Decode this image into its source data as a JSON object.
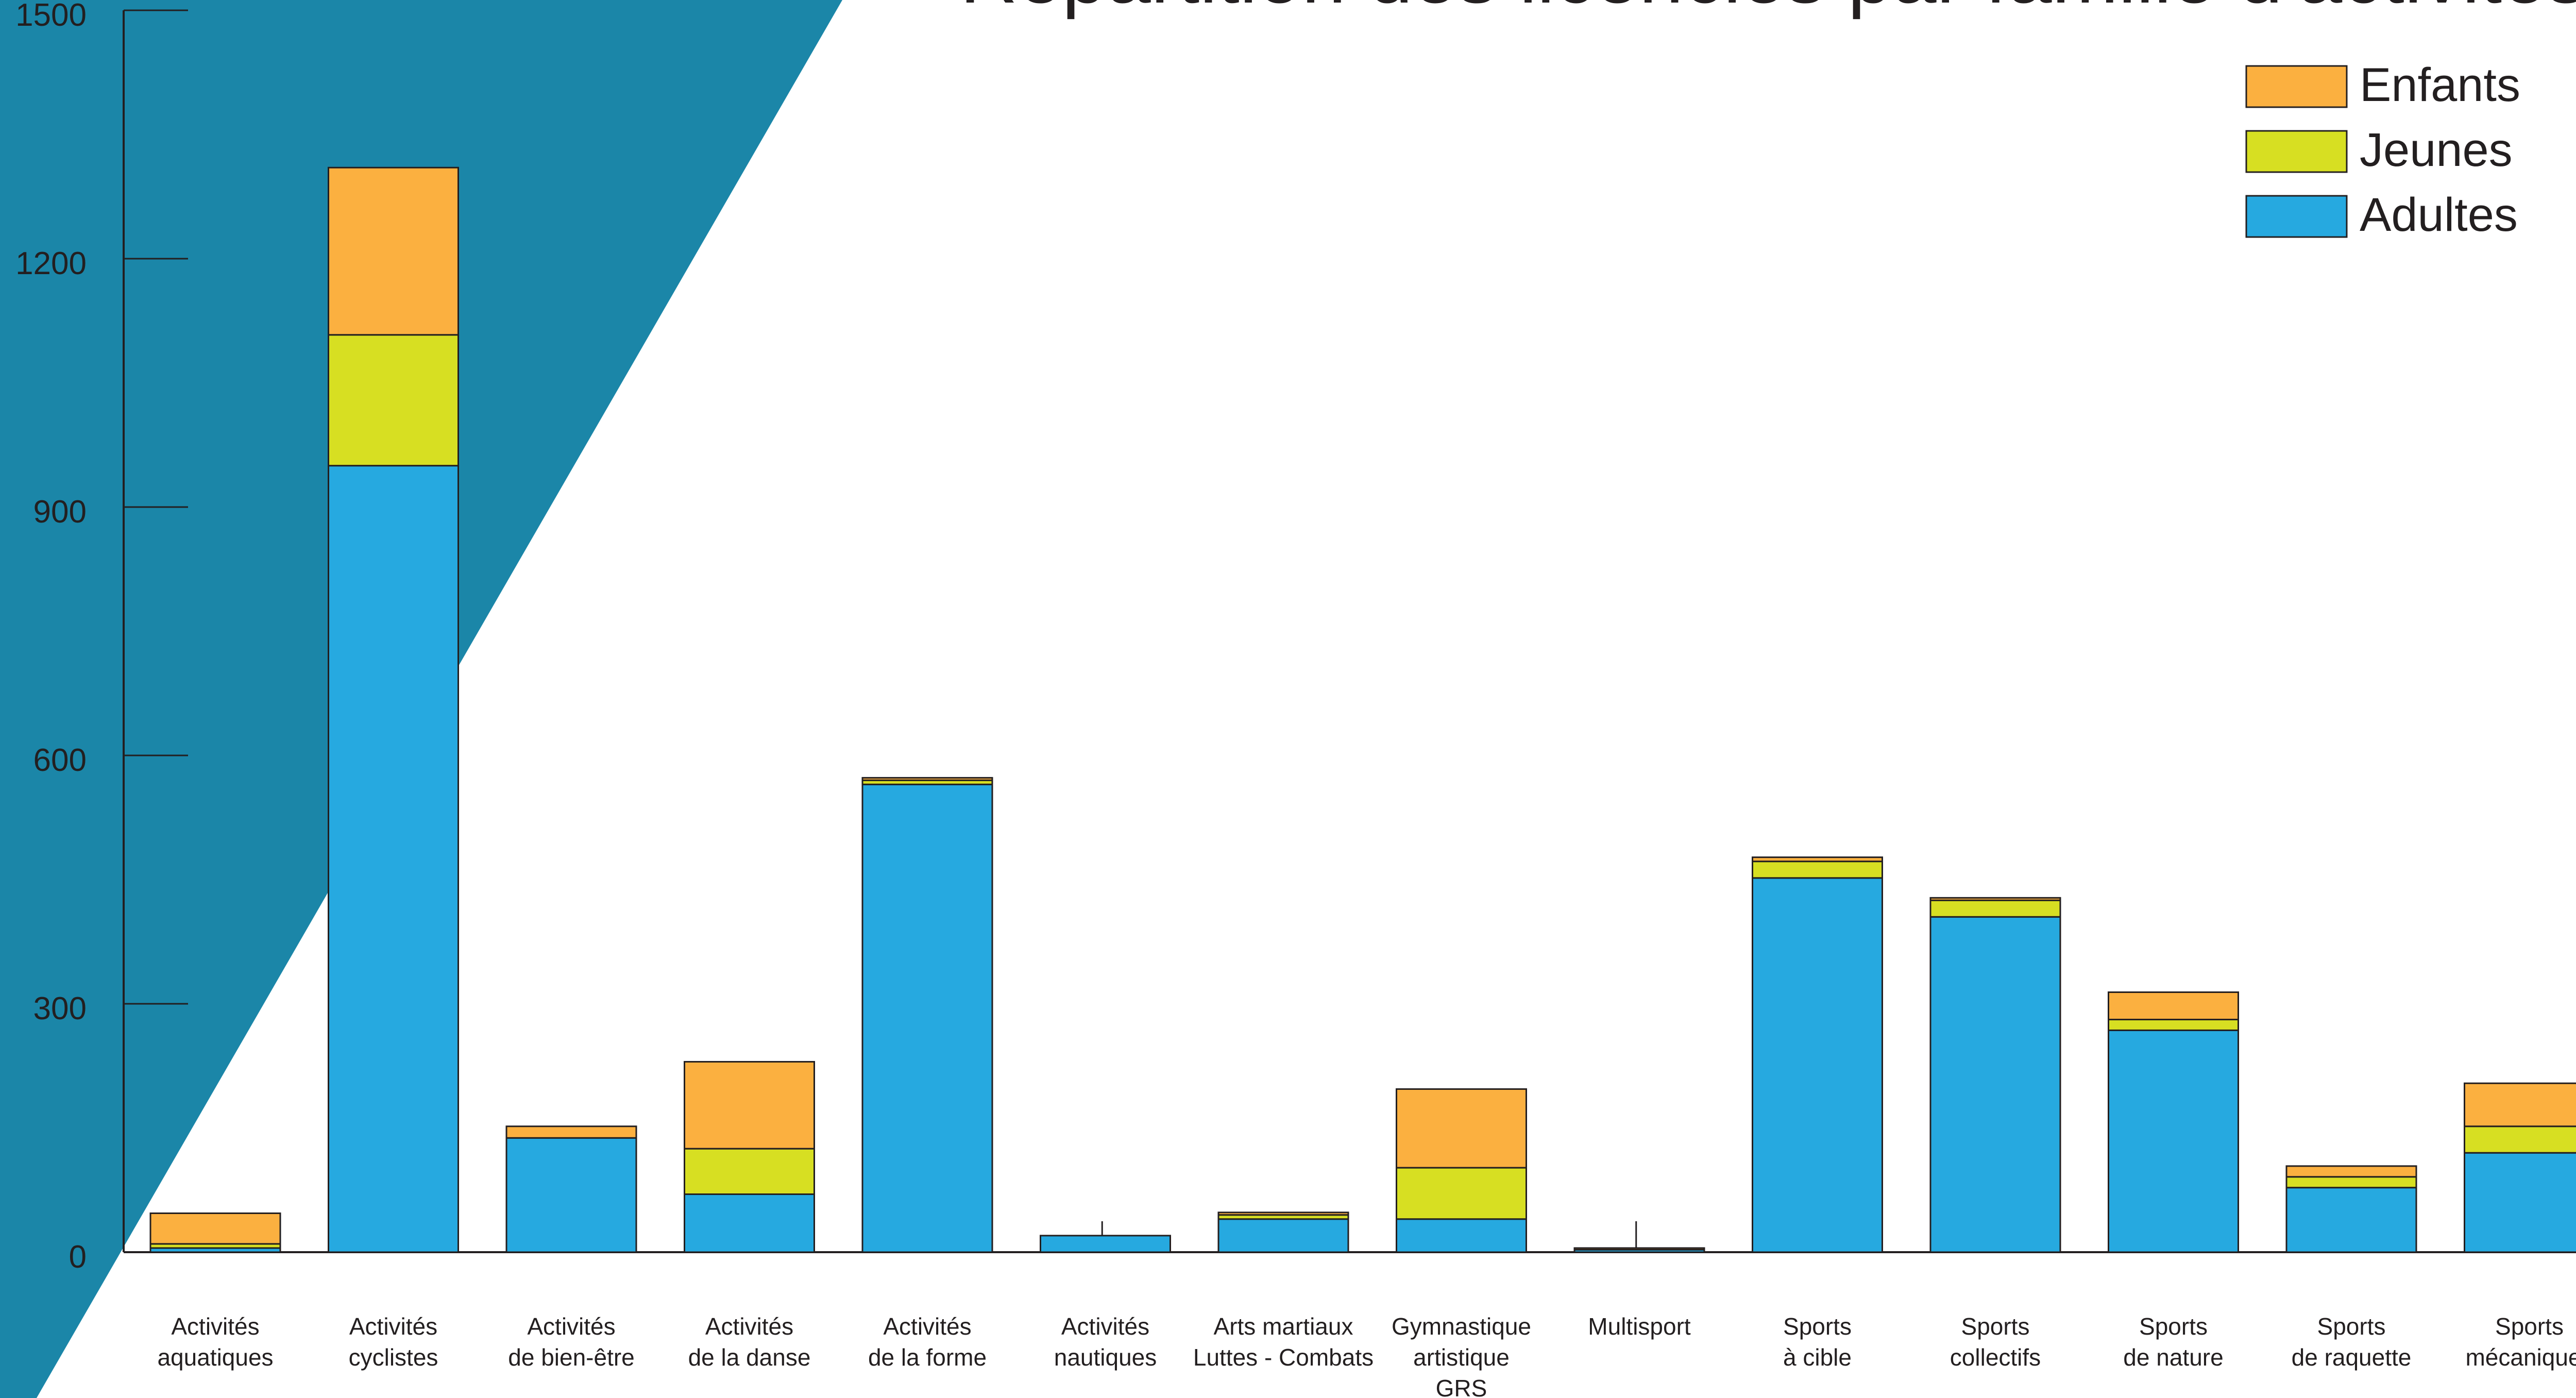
{
  "colors": {
    "background": "#ffffff",
    "banner": "#1b86a8",
    "adultes": "#26a9e0",
    "jeunes": "#d7df22",
    "enfants": "#fbb040",
    "axis": "#231f20",
    "text": "#231f20"
  },
  "chart_data": {
    "type": "bar",
    "stacked": true,
    "title": "Répartition des licenciés par famille d'activités",
    "xlabel": "",
    "ylabel": "",
    "ylim": [
      0,
      1500
    ],
    "yticks": [
      0,
      300,
      600,
      900,
      1200,
      1500
    ],
    "grid": false,
    "legend_position": "top-right",
    "categories": [
      [
        "Activités",
        "aquatiques"
      ],
      [
        "Activités",
        "cyclistes"
      ],
      [
        "Activités",
        "de bien-être"
      ],
      [
        "Activités",
        "de la danse"
      ],
      [
        "Activités",
        "de la forme"
      ],
      [
        "Activités",
        "nautiques"
      ],
      [
        "Arts martiaux",
        "Luttes - Combats"
      ],
      [
        "Gymnastique",
        "artistique",
        "GRS"
      ],
      [
        "Multisport"
      ],
      [
        "Sports",
        "à cible"
      ],
      [
        "Sports",
        "collectifs"
      ],
      [
        "Sports",
        "de nature"
      ],
      [
        "Sports",
        "de raquette"
      ],
      [
        "Sports",
        "mécaniques"
      ]
    ],
    "series": [
      {
        "name": "Adultes",
        "color": "#26a9e0",
        "values": [
          5,
          950,
          138,
          70,
          565,
          20,
          40,
          40,
          3,
          452,
          405,
          268,
          78,
          120
        ]
      },
      {
        "name": "Jeunes",
        "color": "#d7df22",
        "values": [
          5,
          158,
          0,
          55,
          5,
          0,
          5,
          62,
          0,
          20,
          20,
          13,
          13,
          32
        ]
      },
      {
        "name": "Enfants",
        "color": "#fbb040",
        "values": [
          37,
          202,
          14,
          105,
          3,
          0,
          3,
          95,
          2,
          5,
          3,
          33,
          13,
          52
        ]
      }
    ]
  }
}
